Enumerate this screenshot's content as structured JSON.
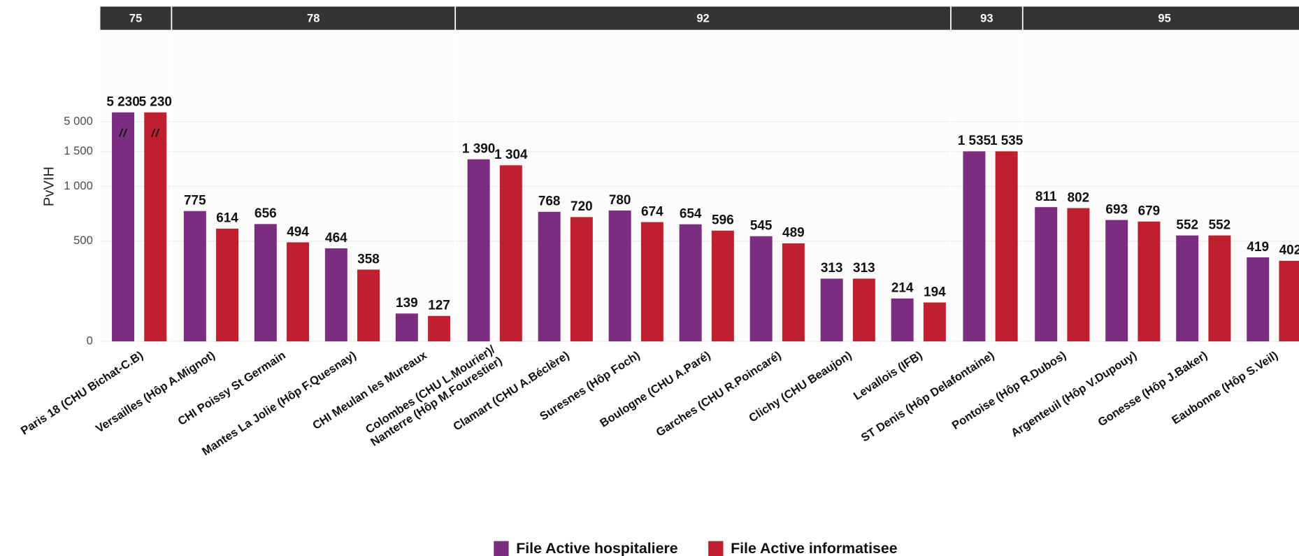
{
  "chart_data": {
    "type": "bar",
    "ylabel": "PvVIH",
    "ylim": [
      0,
      5230
    ],
    "yticks": [
      0,
      500,
      {
        "value": 1000,
        "label": "1 000"
      },
      {
        "value": 1500,
        "label": "1 500"
      },
      {
        "value": 5000,
        "label": "5 000"
      }
    ],
    "grid": true,
    "legend": "bottom",
    "panels": [
      {
        "label": "75",
        "categories": [
          "Paris 18 (CHU Bichat-C.B)"
        ]
      },
      {
        "label": "78",
        "categories": [
          "Versailles (Hôp A.Mignot)",
          "CHI Poissy St Germain",
          "Mantes La Jolie (Hôp F.Quesnay)",
          "CHI Meulan les Mureaux"
        ]
      },
      {
        "label": "92",
        "categories": [
          "Colombes (CHU L.Mourier)/\nNanterre (Hôp M.Fourestier)",
          "Clamart (CHU A.Béclère)",
          "Suresnes (Hôp Foch)",
          "Boulogne (CHU A.Paré)",
          "Garches (CHU R.Poincaré)",
          "Clichy (CHU Beaujon)",
          "Levallois (IFB)"
        ]
      },
      {
        "label": "93",
        "categories": [
          "ST Denis (Hôp Delafontaine)"
        ]
      },
      {
        "label": "95",
        "categories": [
          "Pontoise (Hôp R.Dubos)",
          "Argenteuil (Hôp V.Dupouy)",
          "Gonesse (Hôp J.Baker)",
          "Eaubonne (Hôp S.Veil)"
        ]
      }
    ],
    "series": [
      {
        "name": "File Active hospitaliere",
        "color": "#7b2d80",
        "values": [
          5230,
          775,
          656,
          464,
          139,
          1390,
          768,
          780,
          654,
          545,
          313,
          214,
          1535,
          811,
          693,
          552,
          419
        ],
        "value_labels": [
          "5 230",
          "775",
          "656",
          "464",
          "139",
          "1 390",
          "768",
          "780",
          "654",
          "545",
          "313",
          "214",
          "1 535",
          "811",
          "693",
          "552",
          "419"
        ]
      },
      {
        "name": "File Active informatisee",
        "color": "#c01f30",
        "values": [
          5230,
          614,
          494,
          358,
          127,
          1304,
          720,
          674,
          596,
          489,
          313,
          194,
          1535,
          802,
          679,
          552,
          402
        ],
        "value_labels": [
          "5 230",
          "614",
          "494",
          "358",
          "127",
          "1 304",
          "720",
          "674",
          "596",
          "489",
          "313",
          "194",
          "1 535",
          "802",
          "679",
          "552",
          "402"
        ]
      }
    ]
  }
}
